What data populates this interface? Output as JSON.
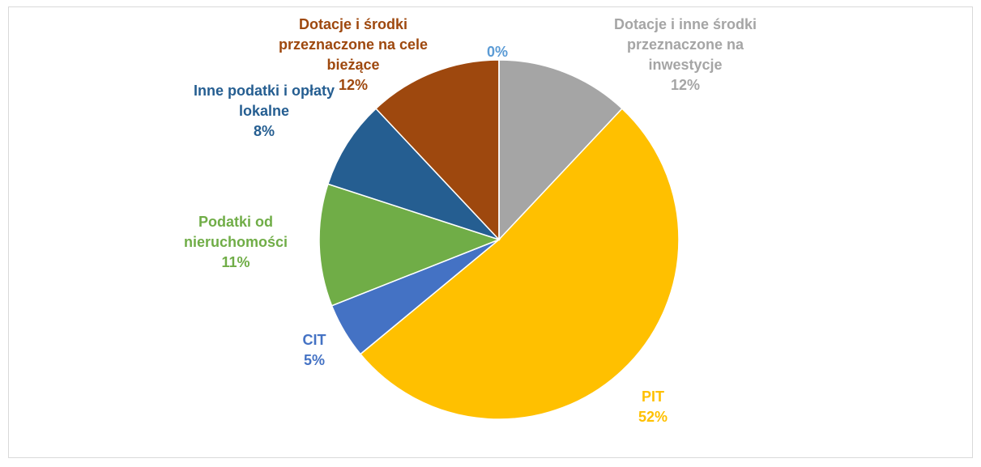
{
  "chart_data": {
    "type": "pie",
    "categories": [
      "Dotacje i inne środki przeznaczone na inwestycje",
      "PIT",
      "CIT",
      "Podatki od nieruchomości",
      "Inne podatki i opłaty lokalne",
      "Dotacje i środki przeznaczone na cele bieżące",
      null
    ],
    "values": [
      12,
      52,
      5,
      11,
      8,
      12,
      0
    ],
    "value_labels": [
      "12%",
      "52%",
      "5%",
      "11%",
      "8%",
      "12%",
      "0%"
    ],
    "colors": [
      "#a5a5a5",
      "#ffc000",
      "#4472c4",
      "#70ad47",
      "#255e91",
      "#9e480e",
      "#5b9bd5"
    ]
  }
}
